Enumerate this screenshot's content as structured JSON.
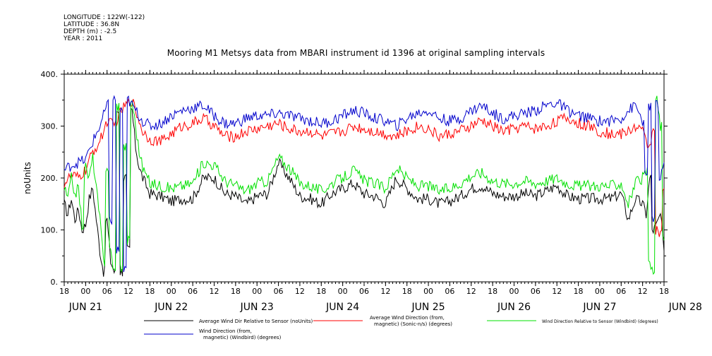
{
  "header": {
    "longitude": "LONGITUDE : 122W(-122)",
    "latitude": "LATITUDE : 36.8N",
    "depth": "DEPTH (m) : -2.5",
    "year": "YEAR : 2011",
    "title": "Mooring M1 Metsys data from MBARI instrument id 1396 at original sampling intervals"
  },
  "chart_data": {
    "type": "line",
    "title": "Mooring M1 Metsys data from MBARI instrument id 1396 at original sampling intervals",
    "ylabel": "noUnits",
    "xlabel": "",
    "ylim": [
      0,
      400
    ],
    "yticks": [
      0,
      100,
      200,
      300,
      400
    ],
    "ytick_labels": [
      "0.",
      "100.",
      "200.",
      "300.",
      "400."
    ],
    "xlim_hours": [
      -6,
      162
    ],
    "xtick_labels": [
      "18",
      "00",
      "06",
      "12",
      "18",
      "00",
      "06",
      "12",
      "18",
      "00",
      "06",
      "12",
      "18",
      "00",
      "06",
      "12",
      "18",
      "00",
      "06",
      "12",
      "18",
      "00",
      "06",
      "12",
      "18",
      "00",
      "06",
      "12",
      "18"
    ],
    "day_labels": [
      "JUN 21",
      "JUN 22",
      "JUN 23",
      "JUN 24",
      "JUN 25",
      "JUN 26",
      "JUN 27",
      "JUN 28"
    ],
    "grid": false,
    "legend_position": "bottom",
    "series": [
      {
        "name": "Average Wind Dir Relative to Sensor (noUnits)",
        "color": "#000000",
        "x": [
          -6,
          -5,
          -4,
          -3,
          -2,
          -1,
          0,
          1,
          2,
          3,
          4,
          5,
          6,
          7,
          8,
          9,
          10,
          11,
          12,
          13,
          14,
          15,
          16,
          18,
          21,
          24,
          27,
          30,
          33,
          36,
          39,
          42,
          45,
          48,
          51,
          54,
          57,
          60,
          63,
          66,
          69,
          72,
          75,
          78,
          81,
          84,
          87,
          90,
          93,
          96,
          99,
          102,
          105,
          108,
          111,
          114,
          117,
          120,
          123,
          126,
          129,
          132,
          135,
          138,
          141,
          144,
          147,
          150,
          152,
          154,
          156,
          157,
          158,
          159,
          160,
          161,
          162
        ],
        "y": [
          150,
          130,
          160,
          120,
          140,
          100,
          110,
          160,
          180,
          120,
          60,
          20,
          120,
          40,
          20,
          330,
          20,
          200,
          60,
          330,
          260,
          220,
          200,
          170,
          165,
          155,
          160,
          160,
          200,
          200,
          170,
          165,
          150,
          165,
          170,
          230,
          200,
          165,
          160,
          150,
          170,
          180,
          190,
          170,
          165,
          150,
          200,
          180,
          160,
          160,
          150,
          155,
          165,
          180,
          185,
          170,
          165,
          165,
          170,
          165,
          175,
          185,
          165,
          160,
          160,
          160,
          160,
          170,
          120,
          160,
          150,
          130,
          200,
          100,
          110,
          130,
          60
        ]
      },
      {
        "name": "Average Wind Direction (from, magnetic) (Sonic-n/s) (degrees)",
        "color": "#ff0000",
        "x": [
          -6,
          -4,
          -2,
          0,
          2,
          4,
          6,
          8,
          10,
          12,
          13,
          14,
          16,
          18,
          21,
          24,
          27,
          30,
          33,
          36,
          39,
          42,
          45,
          48,
          51,
          54,
          57,
          60,
          63,
          66,
          69,
          72,
          75,
          78,
          81,
          84,
          87,
          90,
          93,
          96,
          99,
          102,
          105,
          108,
          111,
          114,
          117,
          120,
          123,
          126,
          129,
          132,
          135,
          138,
          141,
          144,
          147,
          150,
          152,
          154,
          156,
          157,
          158,
          159,
          160,
          161,
          162
        ],
        "y": [
          190,
          205,
          200,
          215,
          250,
          270,
          310,
          300,
          330,
          345,
          350,
          330,
          290,
          275,
          270,
          285,
          300,
          305,
          315,
          300,
          280,
          280,
          290,
          295,
          300,
          305,
          295,
          290,
          290,
          280,
          285,
          290,
          300,
          295,
          290,
          285,
          280,
          290,
          300,
          295,
          280,
          285,
          290,
          300,
          310,
          300,
          290,
          295,
          300,
          295,
          300,
          310,
          315,
          305,
          300,
          290,
          285,
          285,
          290,
          300,
          290,
          270,
          260,
          300,
          100,
          90,
          180
        ]
      },
      {
        "name": "Wind Direction Relative to Sensor (Windbird) (degrees)",
        "color": "#00e000",
        "x": [
          -6,
          -5,
          -4,
          -3,
          -2,
          -1,
          0,
          1,
          2,
          3,
          4,
          5,
          6,
          7,
          8,
          9,
          10,
          11,
          12,
          13,
          14,
          15,
          16,
          18,
          21,
          24,
          27,
          30,
          33,
          36,
          39,
          42,
          45,
          48,
          51,
          54,
          57,
          60,
          63,
          66,
          69,
          72,
          75,
          78,
          81,
          84,
          87,
          90,
          93,
          96,
          99,
          102,
          105,
          108,
          111,
          114,
          117,
          120,
          123,
          126,
          129,
          132,
          135,
          138,
          141,
          144,
          147,
          150,
          152,
          154,
          156,
          157,
          158,
          159,
          160,
          161,
          162
        ],
        "y": [
          180,
          160,
          200,
          170,
          180,
          110,
          220,
          200,
          240,
          180,
          120,
          40,
          220,
          60,
          20,
          340,
          30,
          260,
          80,
          350,
          300,
          250,
          220,
          190,
          185,
          180,
          185,
          190,
          230,
          225,
          195,
          185,
          175,
          190,
          195,
          240,
          220,
          190,
          185,
          175,
          190,
          200,
          215,
          195,
          190,
          180,
          220,
          200,
          185,
          185,
          175,
          180,
          190,
          205,
          210,
          195,
          190,
          190,
          195,
          190,
          195,
          200,
          190,
          185,
          185,
          185,
          185,
          190,
          150,
          190,
          200,
          210,
          30,
          20,
          350,
          300,
          80
        ]
      },
      {
        "name": "Wind Direction (from, magnetic) (Windbird) (degrees)",
        "color": "#0000cc",
        "x": [
          -6,
          -4,
          -2,
          0,
          2,
          4,
          6,
          7,
          8,
          9,
          10,
          11,
          12,
          13,
          14,
          16,
          18,
          21,
          24,
          27,
          30,
          33,
          36,
          39,
          42,
          45,
          48,
          51,
          54,
          57,
          60,
          63,
          66,
          69,
          72,
          75,
          78,
          81,
          84,
          87,
          90,
          93,
          96,
          99,
          102,
          105,
          108,
          111,
          114,
          117,
          120,
          123,
          126,
          129,
          132,
          135,
          138,
          141,
          144,
          147,
          150,
          152,
          154,
          156,
          157,
          158,
          159,
          160,
          161,
          162
        ],
        "y": [
          215,
          225,
          230,
          235,
          270,
          300,
          340,
          120,
          350,
          60,
          330,
          20,
          350,
          340,
          330,
          310,
          300,
          305,
          320,
          330,
          335,
          340,
          320,
          305,
          305,
          315,
          320,
          320,
          325,
          320,
          315,
          310,
          305,
          310,
          320,
          330,
          325,
          315,
          310,
          300,
          315,
          325,
          330,
          315,
          310,
          315,
          330,
          340,
          325,
          315,
          320,
          325,
          330,
          340,
          345,
          330,
          320,
          315,
          310,
          310,
          315,
          330,
          340,
          310,
          200,
          340,
          120,
          340,
          200,
          230
        ]
      }
    ]
  },
  "legend": {
    "black_label": "Average Wind Dir Relative to Sensor (noUnits)",
    "red_label_line1": "Average Wind Direction (from,",
    "red_label_line2": "magnetic) (Sonic-n/s) (degrees)",
    "green_label": "Wind Direction Relative to Sensor (Windbird) (degrees)",
    "blue_label_line1": "Wind Direction (from,",
    "blue_label_line2": "magnetic) (Windbird) (degrees)"
  }
}
